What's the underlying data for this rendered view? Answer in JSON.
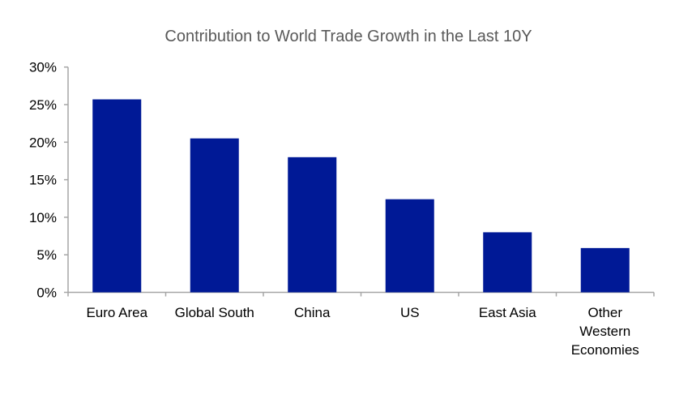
{
  "chart_data": {
    "type": "bar",
    "title": "Contribution to World Trade Growth in the Last 10Y",
    "categories": [
      "Euro Area",
      "Global South",
      "China",
      "US",
      "East Asia",
      [
        "Other",
        "Western",
        "Economies"
      ]
    ],
    "values": [
      25.7,
      20.5,
      18.0,
      12.4,
      8.0,
      5.9
    ],
    "unit": "%",
    "ylim": [
      0,
      30
    ],
    "yticks": [
      "0%",
      "5%",
      "10%",
      "15%",
      "20%",
      "25%",
      "30%"
    ],
    "xlabel": "",
    "ylabel": "",
    "grid": false,
    "legend": "none",
    "colors": {
      "bar": "#001996",
      "axis": "#a6a6a6",
      "title": "#595959"
    }
  }
}
